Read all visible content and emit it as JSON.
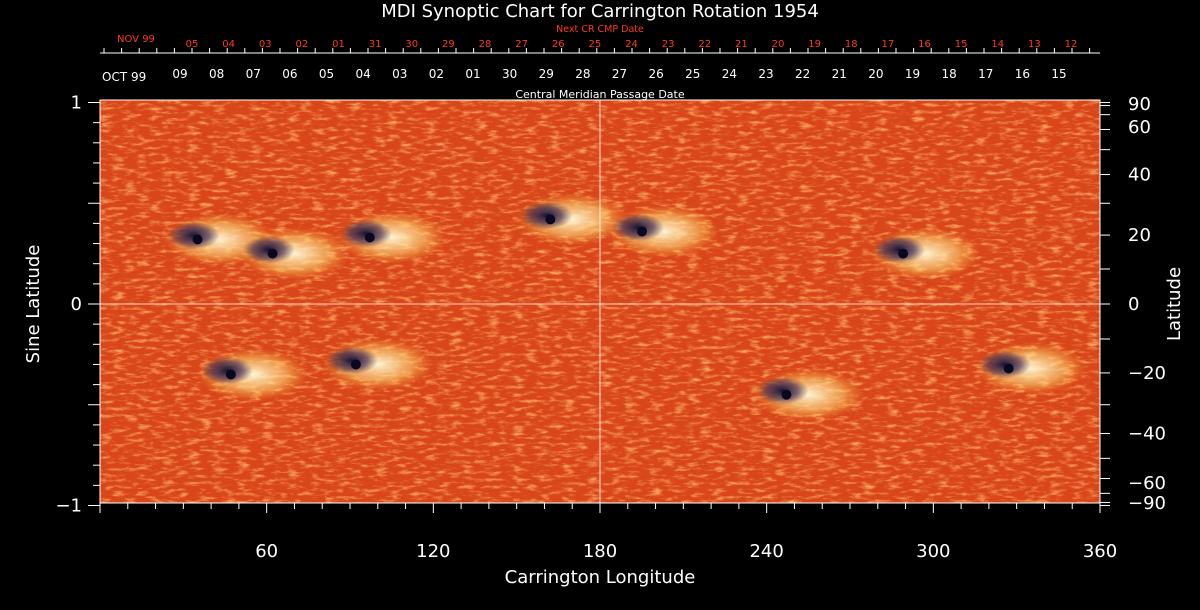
{
  "chart_data": {
    "type": "heatmap",
    "title": "MDI Synoptic Chart for Carrington Rotation 1954",
    "xlabel": "Carrington Longitude",
    "ylabel_left": "Sine Latitude",
    "ylabel_right": "Latitude",
    "xlim": [
      0,
      360
    ],
    "ylim": [
      -1,
      1
    ],
    "x_ticks": [
      "60",
      "120",
      "180",
      "240",
      "300",
      "360"
    ],
    "y_ticks_left": [
      "1",
      "0",
      "−1"
    ],
    "y_ticks_right": [
      "90",
      "60",
      "40",
      "20",
      "0",
      "−20",
      "−40",
      "−60",
      "−90"
    ],
    "next_cr_label": "Next CR CMP Date",
    "next_cr_month": "NOV 99",
    "next_cr_dates": [
      "05",
      "04",
      "03",
      "02",
      "01",
      "31",
      "30",
      "29",
      "28",
      "27",
      "26",
      "25",
      "24",
      "23",
      "22",
      "21",
      "20",
      "19",
      "18",
      "17",
      "16",
      "15",
      "14",
      "13",
      "12"
    ],
    "cmp_month": "OCT 99",
    "cmp_dates": [
      "09",
      "08",
      "07",
      "06",
      "05",
      "04",
      "03",
      "02",
      "01",
      "30",
      "29",
      "28",
      "27",
      "26",
      "25",
      "24",
      "23",
      "22",
      "21",
      "20",
      "19",
      "18",
      "17",
      "16",
      "15"
    ],
    "cmp_label": "Central Meridian Passage Date",
    "colors": {
      "background": "#000000",
      "field_base": "#e4501e",
      "positive_polarity": "#fff2b0",
      "negative_polarity": "#1a1440",
      "next_cr_text": "#ff3a1a"
    },
    "active_regions": [
      {
        "lon": 38,
        "sinlat": 0.32,
        "polarity": "mixed"
      },
      {
        "lon": 65,
        "sinlat": 0.25,
        "polarity": "mixed"
      },
      {
        "lon": 100,
        "sinlat": 0.33,
        "polarity": "mixed"
      },
      {
        "lon": 165,
        "sinlat": 0.42,
        "polarity": "mixed"
      },
      {
        "lon": 198,
        "sinlat": 0.36,
        "polarity": "mixed"
      },
      {
        "lon": 292,
        "sinlat": 0.25,
        "polarity": "mixed"
      },
      {
        "lon": 50,
        "sinlat": -0.35,
        "polarity": "mixed"
      },
      {
        "lon": 95,
        "sinlat": -0.3,
        "polarity": "mixed"
      },
      {
        "lon": 250,
        "sinlat": -0.45,
        "polarity": "mixed"
      },
      {
        "lon": 330,
        "sinlat": -0.32,
        "polarity": "mixed"
      }
    ]
  }
}
